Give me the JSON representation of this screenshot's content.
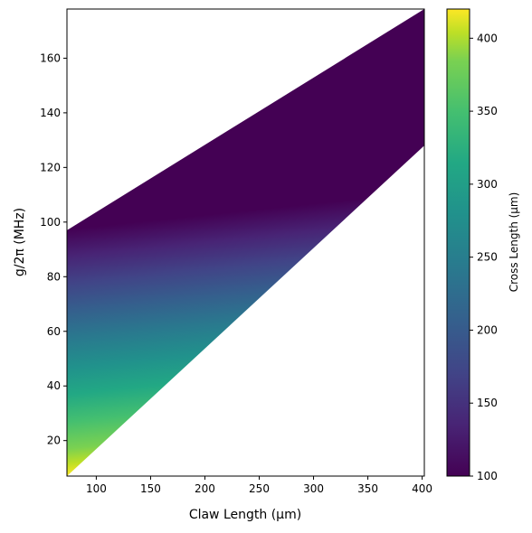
{
  "chart_data": {
    "type": "heatmap",
    "title": "",
    "xlabel": "Claw Length (μm)",
    "ylabel": "g/2π (MHz)",
    "xlim": [
      73,
      402
    ],
    "ylim": [
      7,
      178
    ],
    "x_ticks": [
      "100",
      "150",
      "200",
      "250",
      "300",
      "350",
      "400"
    ],
    "y_ticks": [
      "20",
      "40",
      "60",
      "80",
      "100",
      "120",
      "140",
      "160"
    ],
    "colorbar": {
      "label": "Cross Length (μm)",
      "range": [
        100,
        420
      ],
      "ticks": [
        "100",
        "150",
        "200",
        "250",
        "300",
        "350",
        "400"
      ],
      "colormap": "viridis"
    },
    "region": {
      "upper_edge": [
        [
          73,
          97
        ],
        [
          402,
          178
        ]
      ],
      "lower_edge": [
        [
          73,
          7
        ],
        [
          402,
          128
        ]
      ],
      "cross_length_at_upper_edge": 100,
      "cross_length_at_lower_edge": 420
    }
  }
}
